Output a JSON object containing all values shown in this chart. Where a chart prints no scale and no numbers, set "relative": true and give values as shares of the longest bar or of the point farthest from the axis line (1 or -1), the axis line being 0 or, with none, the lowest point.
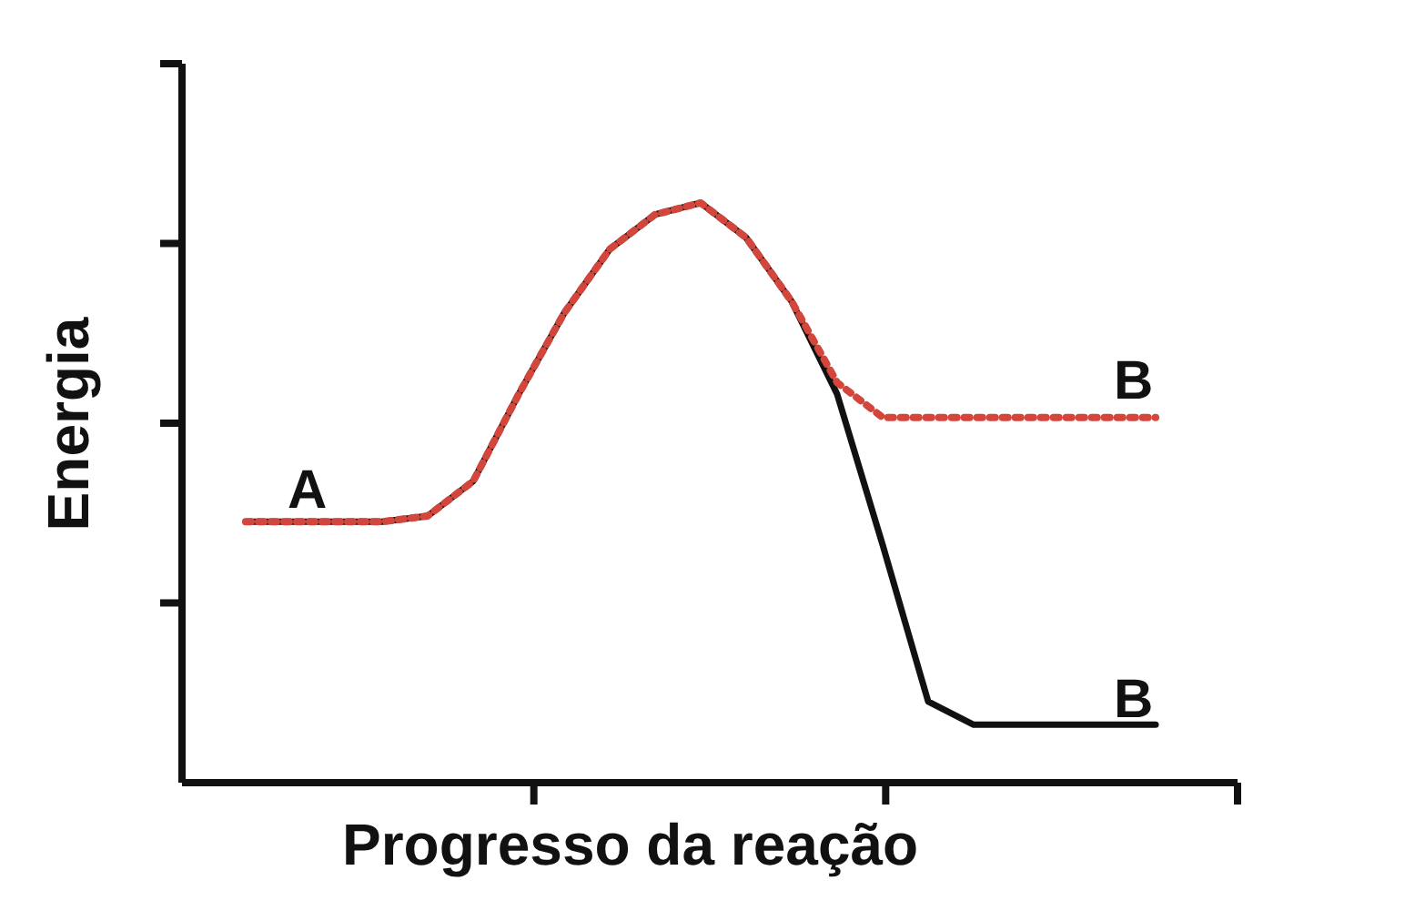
{
  "chart_data": {
    "type": "line",
    "relative": true,
    "xlabel": "Progresso da reação",
    "ylabel": "Energia",
    "categories": [
      null,
      null,
      null,
      null,
      null,
      null,
      null,
      null,
      null,
      null,
      null,
      null,
      null,
      null,
      null,
      null,
      null,
      null,
      null,
      null,
      null
    ],
    "series": [
      {
        "color": "#111111",
        "line_style": "solid",
        "values": [
          0.45,
          0.45,
          0.45,
          0.45,
          0.46,
          0.52,
          0.67,
          0.81,
          0.92,
          0.98,
          1,
          0.94,
          0.83,
          0.67,
          0.41,
          0.14,
          0.1,
          0.1,
          0.1,
          0.1,
          0.1
        ]
      },
      {
        "color": "#d2463c",
        "line_style": "dotted",
        "values": [
          0.45,
          0.45,
          0.45,
          0.45,
          0.46,
          0.52,
          0.67,
          0.81,
          0.92,
          0.98,
          1,
          0.94,
          0.83,
          0.69,
          0.63,
          0.63,
          0.63,
          0.63,
          0.63,
          0.63,
          0.63
        ]
      }
    ],
    "annotations": [
      "A",
      "B",
      "B"
    ],
    "marker": "none"
  }
}
